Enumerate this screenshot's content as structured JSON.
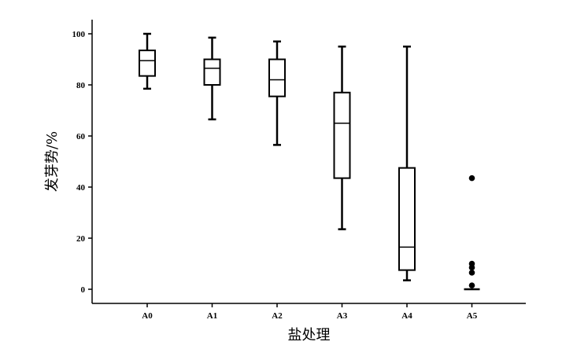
{
  "chart_data": {
    "type": "boxplot",
    "title": "",
    "xlabel": "盐处理",
    "ylabel": "发芽势/%",
    "ylim": [
      0,
      100
    ],
    "yticks": [
      0,
      20,
      40,
      60,
      80,
      100
    ],
    "grid": false,
    "categories": [
      "A0",
      "A1",
      "A2",
      "A3",
      "A4",
      "A5"
    ],
    "boxes": [
      {
        "category": "A0",
        "whisker_low": 78.5,
        "q1": 83.5,
        "median": 89.5,
        "q3": 93.5,
        "whisker_high": 100,
        "outliers": []
      },
      {
        "category": "A1",
        "whisker_low": 66.5,
        "q1": 80,
        "median": 86.5,
        "q3": 90,
        "whisker_high": 98.5,
        "outliers": []
      },
      {
        "category": "A2",
        "whisker_low": 56.5,
        "q1": 75.5,
        "median": 82,
        "q3": 90,
        "whisker_high": 97,
        "outliers": []
      },
      {
        "category": "A3",
        "whisker_low": 23.5,
        "q1": 43.5,
        "median": 65,
        "q3": 77,
        "whisker_high": 95,
        "outliers": []
      },
      {
        "category": "A4",
        "whisker_low": 3.5,
        "q1": 7.5,
        "median": 16.5,
        "q3": 47.5,
        "whisker_high": 95,
        "outliers": []
      },
      {
        "category": "A5",
        "whisker_low": 0,
        "q1": 0,
        "median": 0,
        "q3": 0,
        "whisker_high": 0,
        "outliers": [
          43.5,
          10,
          8.5,
          6.5,
          1.5
        ]
      }
    ],
    "colors": {
      "stroke": "#000000",
      "fill": "#ffffff"
    }
  }
}
